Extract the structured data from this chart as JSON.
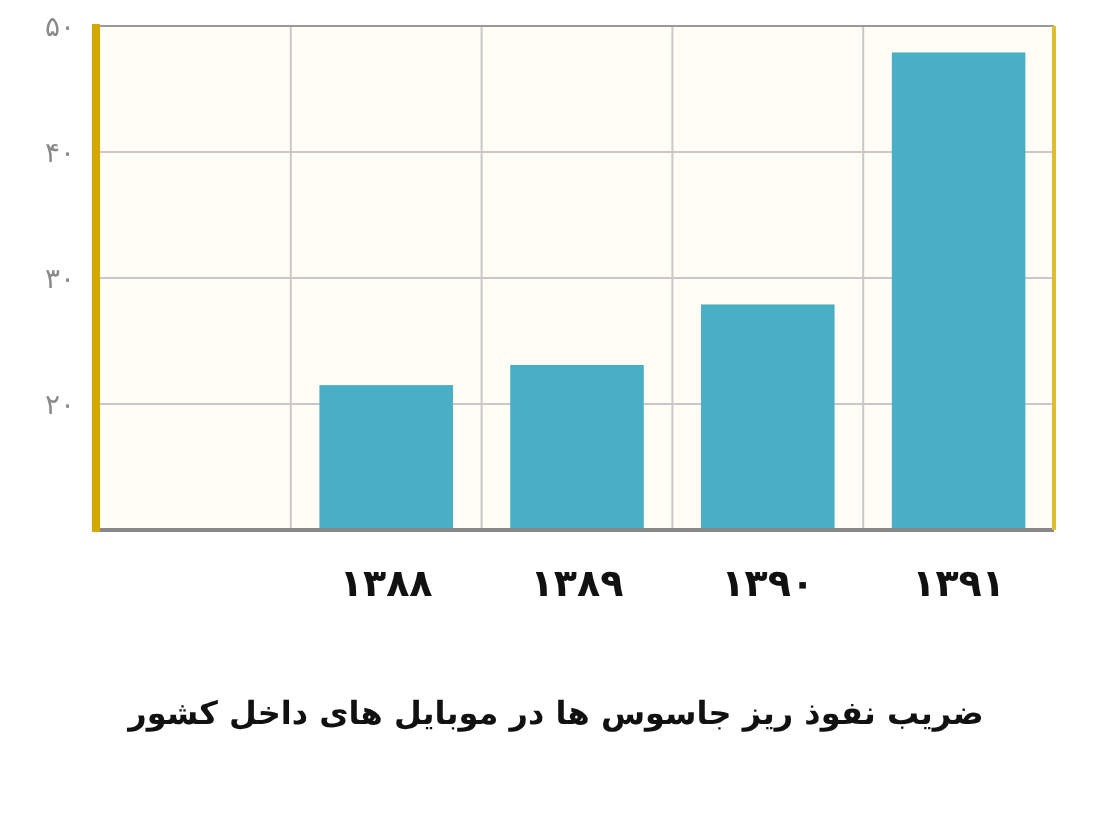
{
  "chart_data": {
    "type": "bar",
    "title": "ضریب نفوذ ریز جاسوس ها در موبایل های داخل کشور",
    "categories": [
      null,
      "۱۳۸۸",
      "۱۳۸۹",
      "۱۳۹۰",
      "۱۳۹۱"
    ],
    "values": [
      null,
      21.5,
      23.1,
      27.9,
      47.9
    ],
    "color": "#4aaec5",
    "ylim": [
      10,
      50
    ],
    "yticks": [
      {
        "value": 20,
        "label": "۲۰"
      },
      {
        "value": 30,
        "label": "۳۰"
      },
      {
        "value": 40,
        "label": "۴۰"
      },
      {
        "value": 50,
        "label": "۵۰"
      }
    ],
    "grid": true
  }
}
